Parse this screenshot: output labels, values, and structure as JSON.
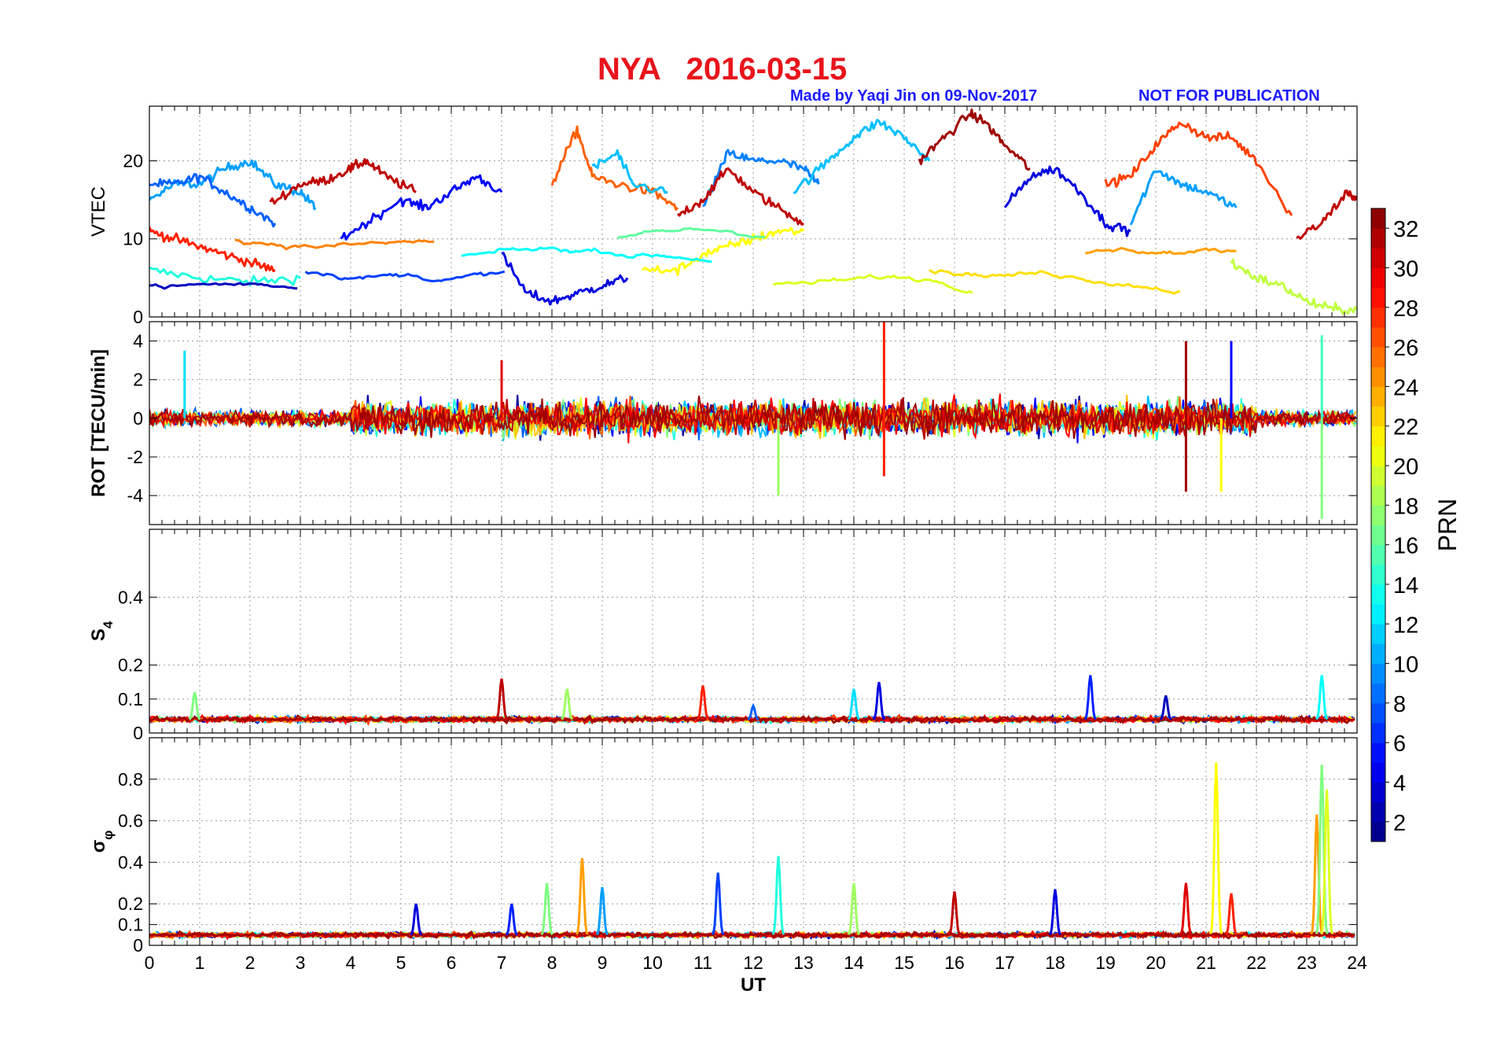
{
  "figure": {
    "station": "NYA",
    "date": "2016-03-15",
    "credit": "Made by Yaqi Jin on 09-Nov-2017",
    "notice": "NOT FOR PUBLICATION"
  },
  "colors": {
    "title": "#e8141c",
    "credit": "#1a1aff",
    "colormap": "jet"
  },
  "chart_data": [
    {
      "type": "line",
      "panel": "VTEC",
      "ylabel": "VTEC",
      "xlabel": "",
      "xlim": [
        0,
        24
      ],
      "ylim": [
        0,
        27
      ],
      "yticks": [
        0,
        10,
        20
      ],
      "grid": true,
      "series_summary": "multi-PRN VTEC traces, range ~2-26 TECU",
      "series": [
        {
          "prn": 14,
          "x": [
            0,
            1,
            2,
            3
          ],
          "y": [
            6,
            5,
            4.5,
            5
          ]
        },
        {
          "prn": 10,
          "x": [
            0,
            0.5,
            1,
            1.5,
            2,
            2.5,
            3,
            3.3
          ],
          "y": [
            15,
            17,
            17,
            19,
            20,
            17,
            16,
            14
          ]
        },
        {
          "prn": 8,
          "x": [
            0,
            0.5,
            1,
            1.5,
            2,
            2.5
          ],
          "y": [
            17,
            17,
            18,
            16,
            14,
            12
          ]
        },
        {
          "prn": 28,
          "x": [
            0,
            0.5,
            1,
            1.5,
            2,
            2.5
          ],
          "y": [
            11,
            10,
            9,
            8,
            7,
            6
          ]
        },
        {
          "prn": 31,
          "x": [
            2.4,
            3,
            3.5,
            4,
            4.3,
            4.7,
            5.3
          ],
          "y": [
            14.5,
            17,
            17.5,
            19,
            20,
            18,
            16
          ]
        },
        {
          "prn": 5,
          "x": [
            3.8,
            4.3,
            5,
            5.5,
            6,
            6.5,
            7
          ],
          "y": [
            10,
            12,
            15,
            14,
            16,
            18,
            16
          ]
        },
        {
          "prn": 4,
          "x": [
            7,
            7.5,
            8,
            8.5,
            9,
            9.5
          ],
          "y": [
            8,
            3,
            2,
            3,
            4,
            5
          ]
        },
        {
          "prn": 26,
          "x": [
            8,
            8.5,
            8.8,
            9.3,
            10,
            10.5
          ],
          "y": [
            17,
            24,
            18,
            17,
            16,
            14
          ]
        },
        {
          "prn": 11,
          "x": [
            8.8,
            9.3,
            9.6,
            10.3
          ],
          "y": [
            19,
            21,
            17,
            16
          ]
        },
        {
          "prn": 9,
          "x": [
            11,
            11.5,
            12,
            12.5,
            13,
            13.3
          ],
          "y": [
            14,
            21,
            20,
            20,
            19,
            17
          ]
        },
        {
          "prn": 31,
          "x": [
            10.5,
            11,
            11.5,
            12,
            12.5,
            13
          ],
          "y": [
            13,
            15,
            19,
            16,
            14,
            12
          ]
        },
        {
          "prn": 11,
          "x": [
            12.8,
            13.5,
            14,
            14.5,
            15,
            15.5
          ],
          "y": [
            16,
            20,
            23,
            25,
            23,
            20
          ]
        },
        {
          "prn": 32,
          "x": [
            15.3,
            15.8,
            16.3,
            16.6,
            17,
            17.5
          ],
          "y": [
            20,
            23,
            26,
            25,
            22,
            19
          ]
        },
        {
          "prn": 4,
          "x": [
            17,
            17.5,
            18,
            18.5,
            19,
            19.5
          ],
          "y": [
            14,
            18,
            19,
            16,
            12,
            11
          ]
        },
        {
          "prn": 27,
          "x": [
            19,
            19.5,
            20,
            20.5,
            21,
            21.5,
            22,
            22.7
          ],
          "y": [
            17,
            18,
            22,
            25,
            23,
            23,
            20,
            13
          ]
        },
        {
          "prn": 10,
          "x": [
            19.5,
            20,
            20.5,
            21,
            21.6
          ],
          "y": [
            12,
            19,
            17,
            16,
            14
          ]
        },
        {
          "prn": 31,
          "x": [
            22.8,
            23.3,
            23.8,
            24
          ],
          "y": [
            10,
            12,
            16,
            15
          ]
        },
        {
          "prn": 21,
          "x": [
            9.8,
            10.5,
            11,
            11.5,
            12,
            12.5,
            13
          ],
          "y": [
            6,
            6,
            8,
            9,
            10,
            11,
            11
          ]
        },
        {
          "prn": 19,
          "x": [
            21.5,
            22,
            22.5,
            23,
            23.5,
            24
          ],
          "y": [
            7,
            5,
            4,
            2,
            1,
            1
          ]
        }
      ]
    },
    {
      "type": "line",
      "panel": "ROT",
      "ylabel": "ROT [TECU/min]",
      "xlabel": "",
      "xlim": [
        0,
        24
      ],
      "ylim": [
        -5.5,
        5
      ],
      "yticks": [
        -4,
        -2,
        0,
        2,
        4
      ],
      "grid": true,
      "series_summary": "multi-PRN rate of TEC, mostly within ±2 with spikes to ±5",
      "spikes": [
        {
          "x": 0.7,
          "y": 3.5,
          "prn": 12
        },
        {
          "x": 7.0,
          "y": 3.0,
          "prn": 30
        },
        {
          "x": 12.5,
          "y": -4.0,
          "prn": 18
        },
        {
          "x": 14.6,
          "y": 5.0,
          "prn": 28
        },
        {
          "x": 14.6,
          "y": -3.0,
          "prn": 28
        },
        {
          "x": 20.6,
          "y": 4.0,
          "prn": 32
        },
        {
          "x": 20.6,
          "y": -3.8,
          "prn": 32
        },
        {
          "x": 21.3,
          "y": -3.8,
          "prn": 21
        },
        {
          "x": 21.5,
          "y": 4.0,
          "prn": 5
        },
        {
          "x": 23.3,
          "y": 4.3,
          "prn": 15
        },
        {
          "x": 23.3,
          "y": -5.2,
          "prn": 17
        }
      ]
    },
    {
      "type": "line",
      "panel": "S4",
      "ylabel": "S",
      "ylabel_subscript": "4",
      "xlabel": "",
      "xlim": [
        0,
        24
      ],
      "ylim": [
        0,
        0.6
      ],
      "yticks": [
        0,
        0.1,
        0.2,
        0.4
      ],
      "grid": true,
      "series_summary": "S4 baseline ~0.03-0.06 with enhancements",
      "peaks": [
        {
          "x": 0.9,
          "y": 0.12,
          "prn": 17
        },
        {
          "x": 7.0,
          "y": 0.16,
          "prn": 31
        },
        {
          "x": 8.3,
          "y": 0.13,
          "prn": 18
        },
        {
          "x": 11.0,
          "y": 0.14,
          "prn": 28
        },
        {
          "x": 12.0,
          "y": 0.08,
          "prn": 8
        },
        {
          "x": 14.0,
          "y": 0.13,
          "prn": 12
        },
        {
          "x": 14.5,
          "y": 0.15,
          "prn": 4
        },
        {
          "x": 18.7,
          "y": 0.17,
          "prn": 6
        },
        {
          "x": 20.2,
          "y": 0.11,
          "prn": 3
        },
        {
          "x": 23.3,
          "y": 0.17,
          "prn": 13
        }
      ]
    },
    {
      "type": "line",
      "panel": "sigma_phi",
      "ylabel": "σ",
      "ylabel_subscript": "φ",
      "xlabel": "UT",
      "xlim": [
        0,
        24
      ],
      "ylim": [
        0,
        1
      ],
      "yticks": [
        0,
        0.1,
        0.2,
        0.4,
        0.6,
        0.8
      ],
      "xticks": [
        0,
        1,
        2,
        3,
        4,
        5,
        6,
        7,
        8,
        9,
        10,
        11,
        12,
        13,
        14,
        15,
        16,
        17,
        18,
        19,
        20,
        21,
        22,
        23,
        24
      ],
      "grid": true,
      "series_summary": "phase scintillation baseline ~0.05 with spikes",
      "peaks": [
        {
          "x": 5.3,
          "y": 0.2,
          "prn": 4
        },
        {
          "x": 7.2,
          "y": 0.2,
          "prn": 6
        },
        {
          "x": 7.9,
          "y": 0.3,
          "prn": 17
        },
        {
          "x": 8.6,
          "y": 0.42,
          "prn": 24
        },
        {
          "x": 9.0,
          "y": 0.28,
          "prn": 10
        },
        {
          "x": 11.3,
          "y": 0.35,
          "prn": 7
        },
        {
          "x": 12.5,
          "y": 0.43,
          "prn": 14
        },
        {
          "x": 14.0,
          "y": 0.3,
          "prn": 18
        },
        {
          "x": 16.0,
          "y": 0.26,
          "prn": 31
        },
        {
          "x": 18.0,
          "y": 0.27,
          "prn": 4
        },
        {
          "x": 20.6,
          "y": 0.3,
          "prn": 30
        },
        {
          "x": 21.2,
          "y": 0.88,
          "prn": 21
        },
        {
          "x": 21.5,
          "y": 0.25,
          "prn": 28
        },
        {
          "x": 23.2,
          "y": 0.63,
          "prn": 24
        },
        {
          "x": 23.3,
          "y": 0.87,
          "prn": 17
        },
        {
          "x": 23.4,
          "y": 0.75,
          "prn": 20
        }
      ]
    },
    {
      "type": "heatmap",
      "panel": "colorbar",
      "label": "PRN",
      "range": [
        1,
        33
      ],
      "ticks": [
        2,
        4,
        6,
        8,
        10,
        12,
        14,
        16,
        18,
        20,
        22,
        24,
        26,
        28,
        30,
        32
      ],
      "colormap": "jet"
    }
  ]
}
